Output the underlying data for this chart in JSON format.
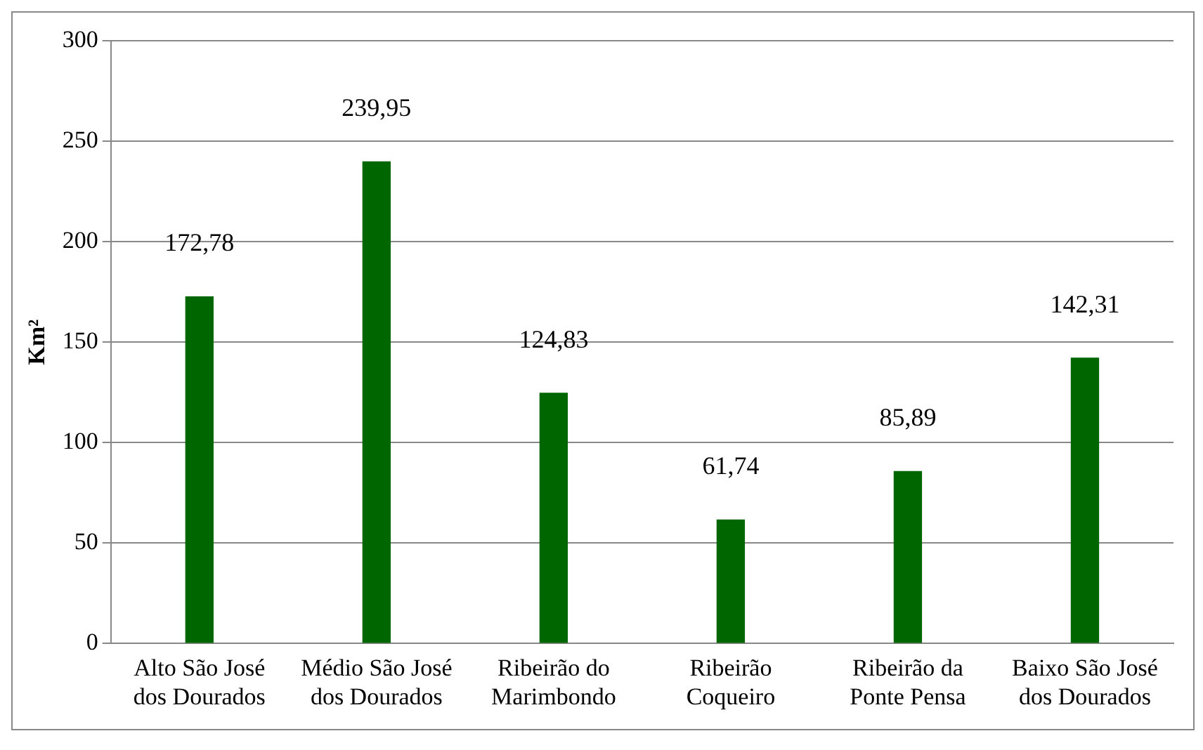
{
  "chart_data": {
    "type": "bar",
    "ylabel": "Km²",
    "categories": [
      "Alto São José dos Dourados",
      "Médio São José dos Dourados",
      "Ribeirão do Marimbondo",
      "Ribeirão Coqueiro",
      "Ribeirão da Ponte Pensa",
      "Baixo São José dos Dourados"
    ],
    "values": [
      172.78,
      239.95,
      124.83,
      61.74,
      85.89,
      142.31
    ],
    "value_labels": [
      "172,78",
      "239,95",
      "124,83",
      "61,74",
      "85,89",
      "142,31"
    ],
    "color": "#006600",
    "ylim": [
      0,
      300
    ],
    "yticks": [
      0,
      50,
      100,
      150,
      200,
      250,
      300
    ],
    "grid": "y",
    "legend": false
  }
}
